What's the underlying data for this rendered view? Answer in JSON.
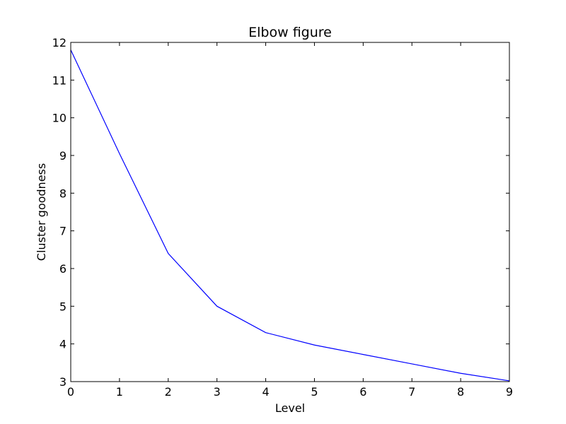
{
  "chart_data": {
    "type": "line",
    "title": "Elbow figure",
    "xlabel": "Level",
    "ylabel": "Cluster goodness",
    "xlim": [
      0,
      9
    ],
    "ylim": [
      3,
      12
    ],
    "xticks": [
      "0",
      "1",
      "2",
      "3",
      "4",
      "5",
      "6",
      "7",
      "8",
      "9"
    ],
    "yticks": [
      "3",
      "4",
      "5",
      "6",
      "7",
      "8",
      "9",
      "10",
      "11",
      "12"
    ],
    "grid": false,
    "series": [
      {
        "color": "#0000ff",
        "x": [
          0,
          1,
          2,
          3,
          4,
          5,
          6,
          7,
          8,
          9
        ],
        "y": [
          11.8,
          9.05,
          6.4,
          5.0,
          4.3,
          3.97,
          3.72,
          3.47,
          3.22,
          3.02
        ]
      }
    ]
  }
}
